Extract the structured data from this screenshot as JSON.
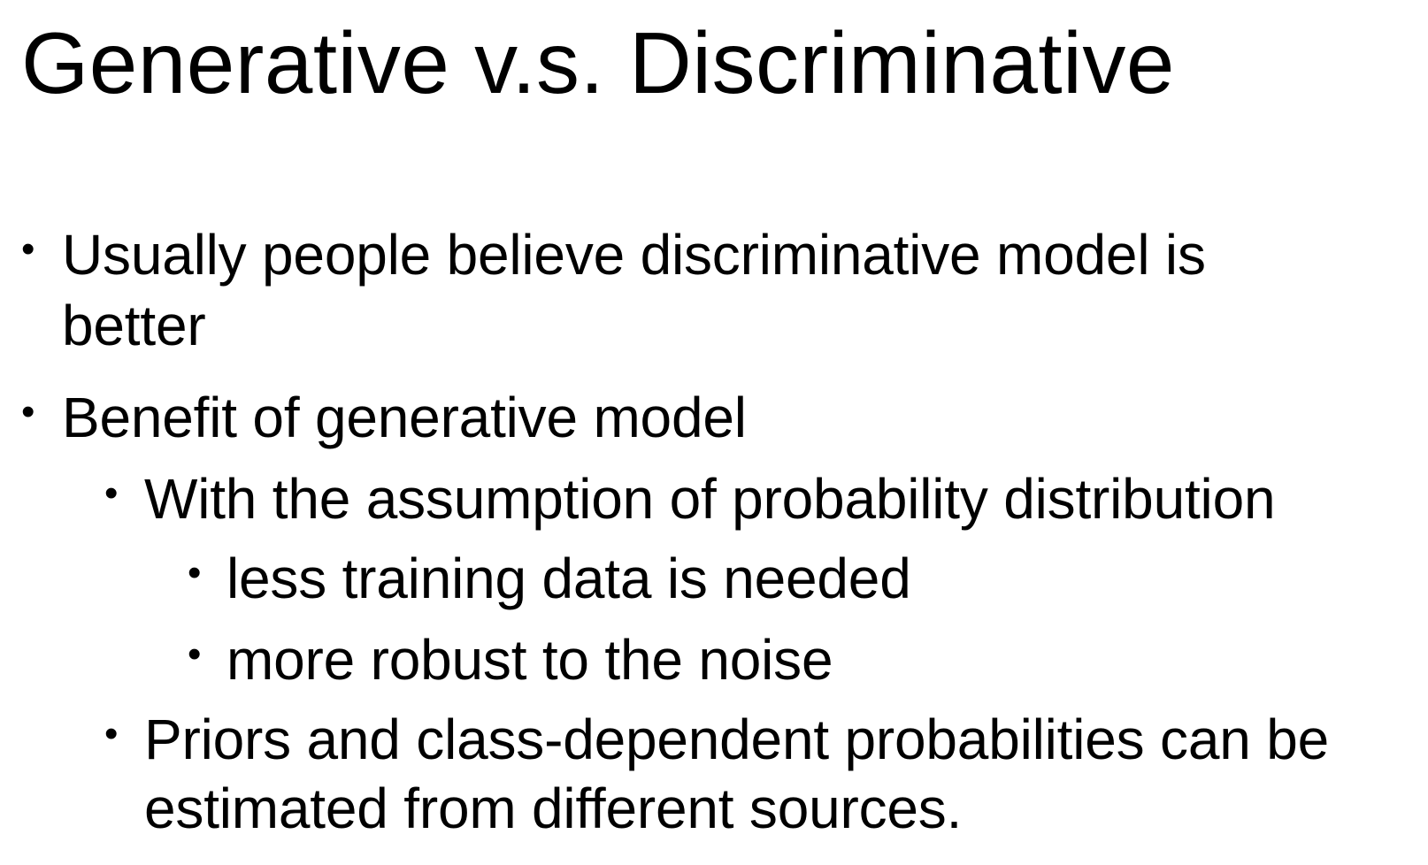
{
  "title": "Generative v.s. Discriminative",
  "bullet_glyph": "•",
  "bullets": [
    {
      "level": 1,
      "lines": [
        "Usually people believe discriminative model is",
        "better"
      ]
    },
    {
      "level": 1,
      "lines": [
        "Benefit of generative model"
      ]
    },
    {
      "level": 2,
      "lines": [
        "With the assumption of probability distribution"
      ]
    },
    {
      "level": 3,
      "lines": [
        "less training data is needed"
      ]
    },
    {
      "level": 3,
      "lines": [
        "more robust to the noise"
      ]
    },
    {
      "level": 2,
      "lines": [
        "Priors and class-dependent probabilities can be",
        "estimated from different sources."
      ]
    }
  ]
}
